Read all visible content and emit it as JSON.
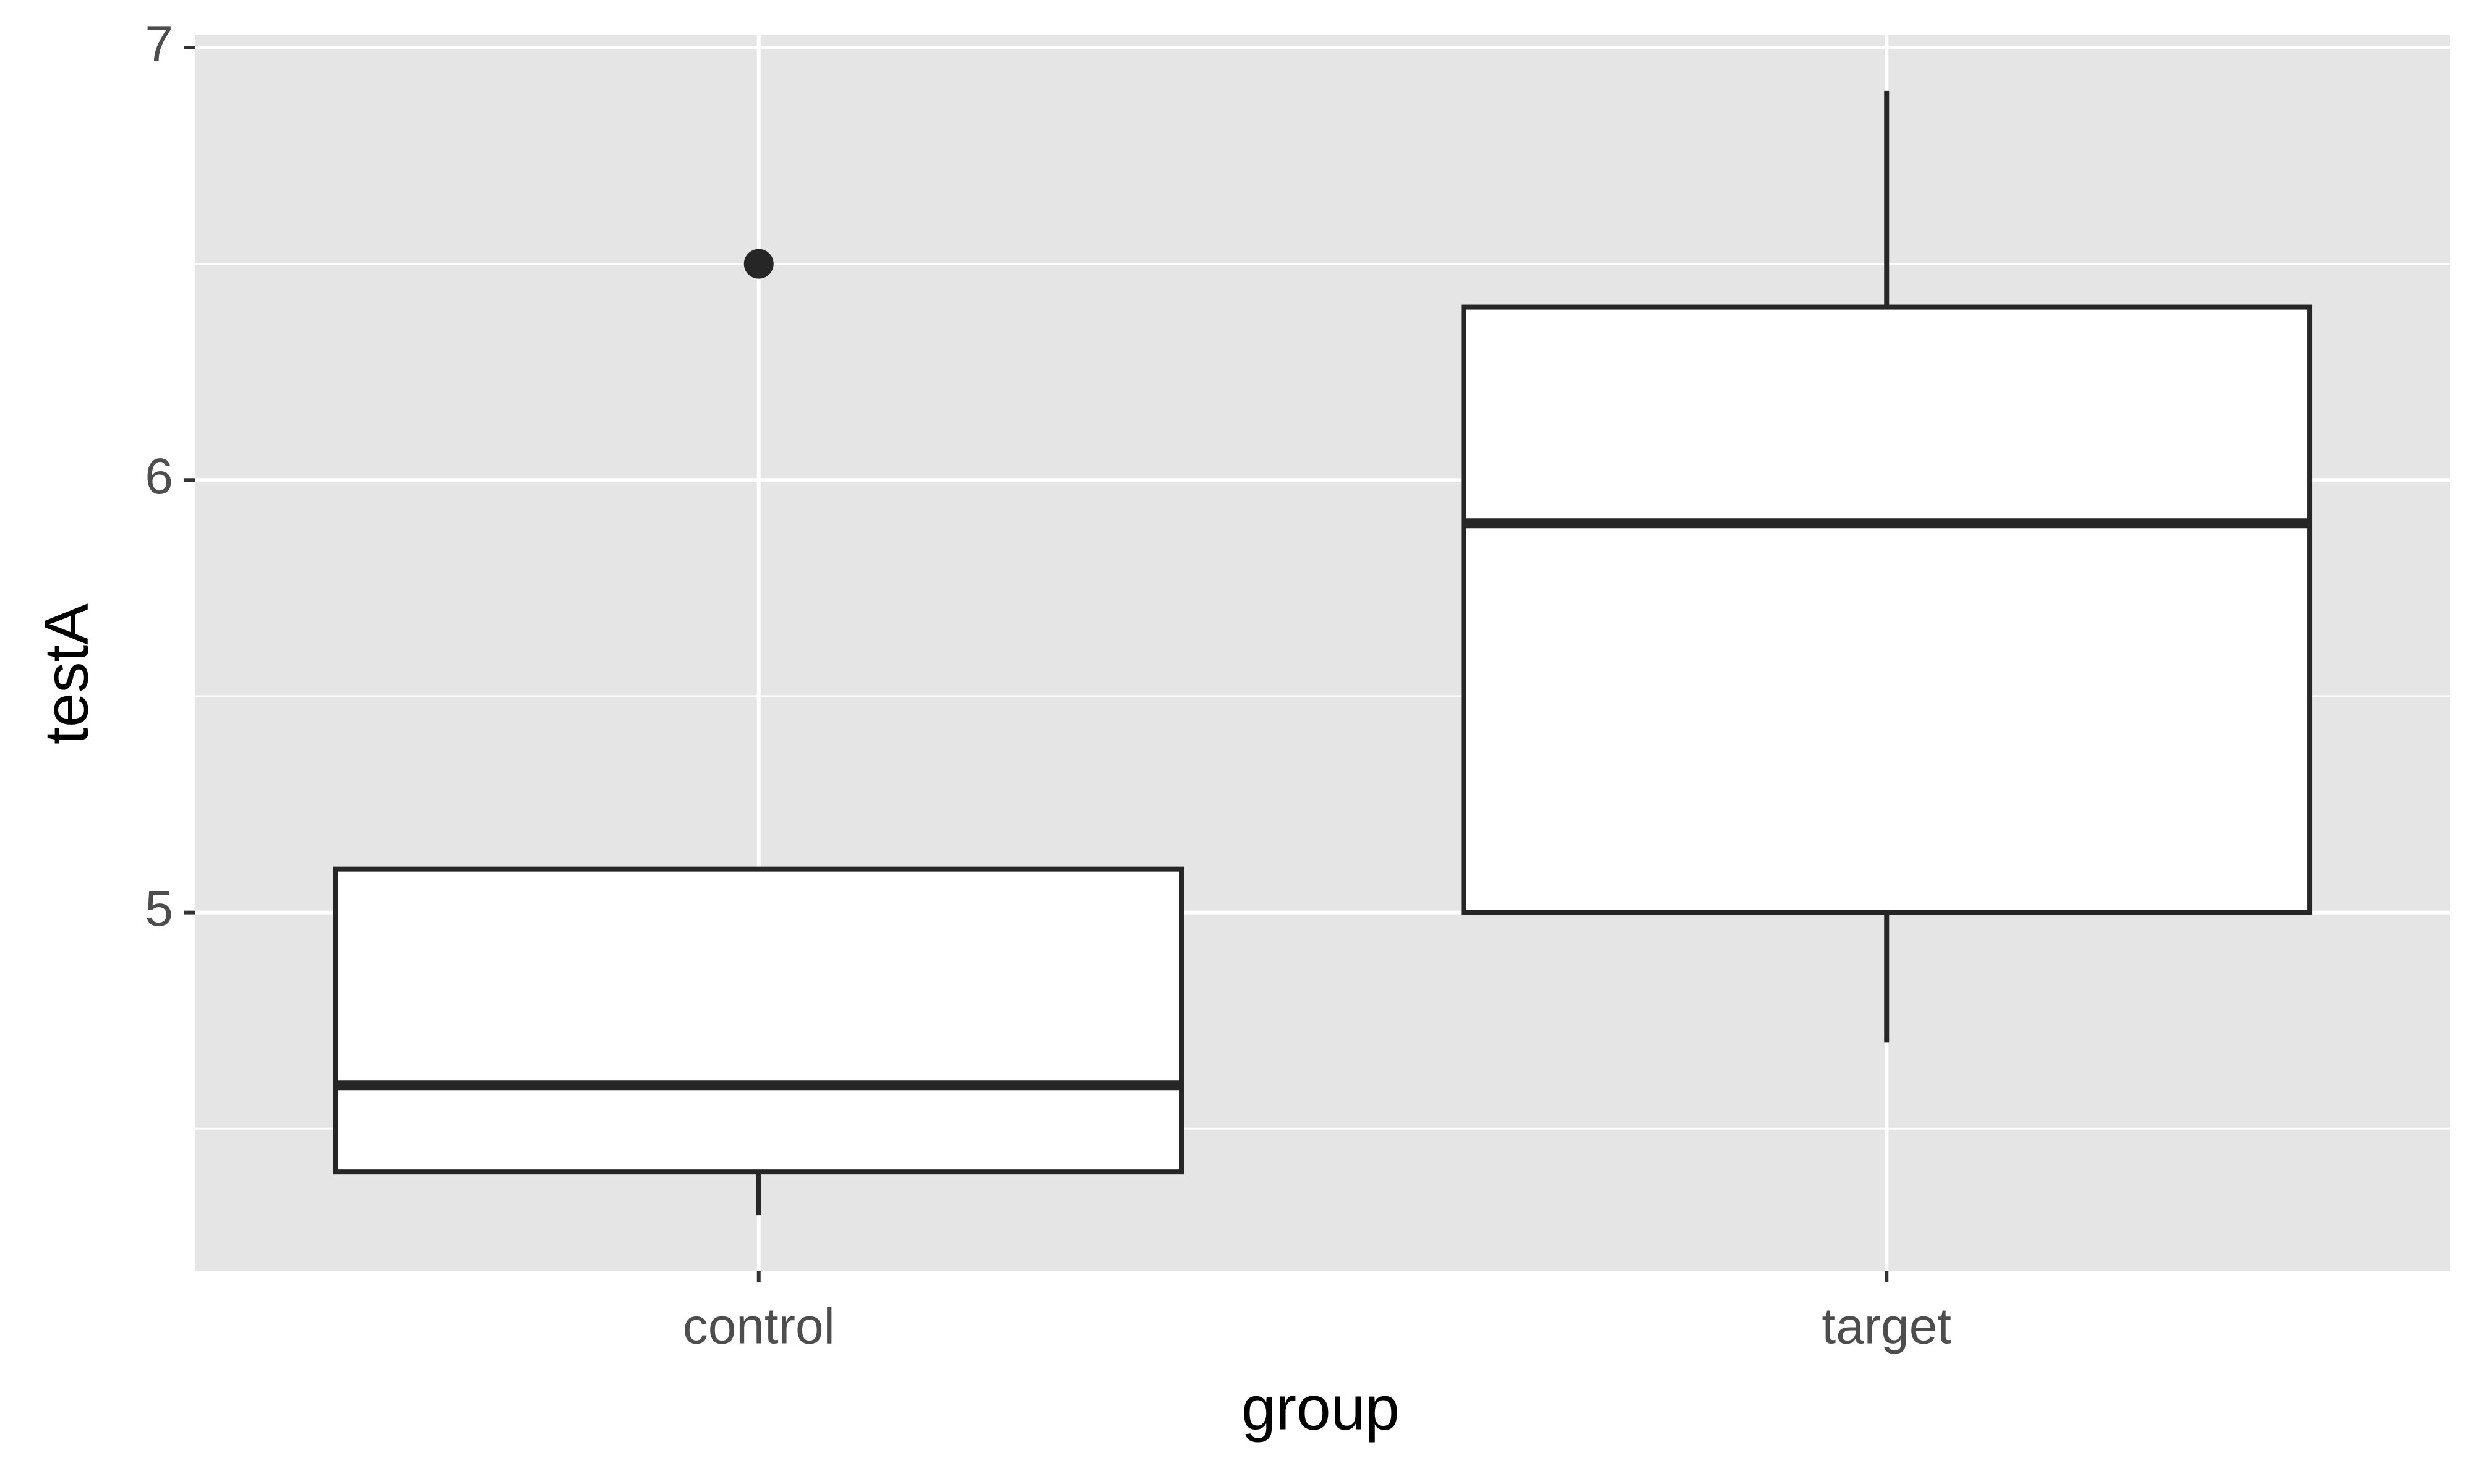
{
  "chart_data": {
    "type": "box",
    "x_label": "group",
    "y_label": "testA",
    "categories": [
      "control",
      "target"
    ],
    "boxes": [
      {
        "min": 4.3,
        "q1": 4.4,
        "median": 4.6,
        "q3": 5.1,
        "max": 5.1,
        "outliers": [
          6.5
        ]
      },
      {
        "min": 4.7,
        "q1": 5.0,
        "median": 5.9,
        "q3": 6.4,
        "max": 6.9,
        "outliers": []
      }
    ],
    "ylim": [
      4.17,
      7.03
    ],
    "yticks": [
      5,
      6,
      7
    ],
    "yminorticks": [
      4.5,
      5.5,
      6.5
    ],
    "grid": true,
    "box_fill": "#ffffff",
    "line_color": "#262626",
    "panel_color": "#e5e5e5"
  }
}
